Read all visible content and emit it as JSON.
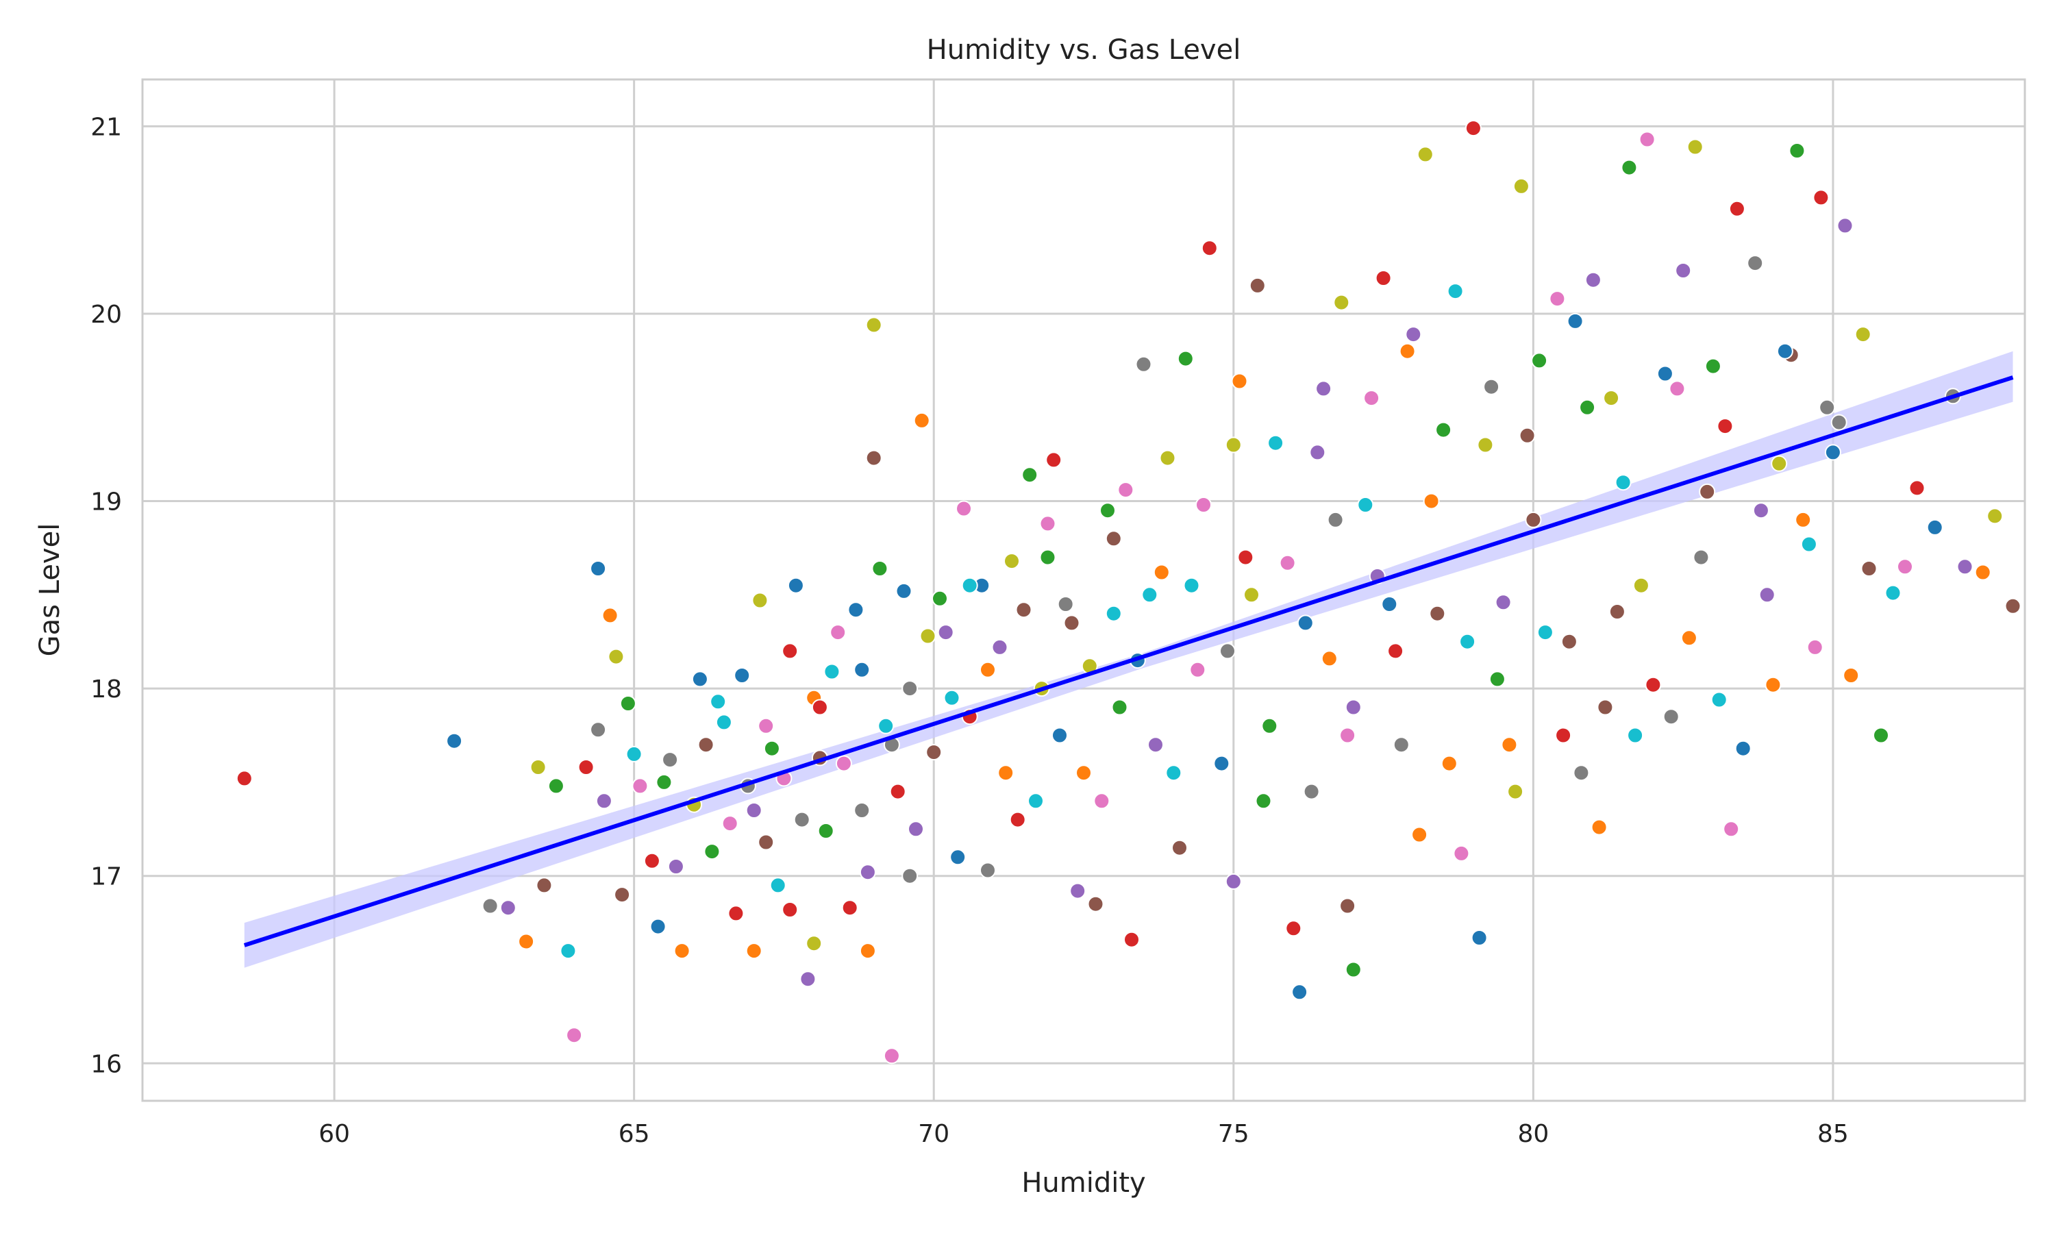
{
  "chart_data": {
    "type": "scatter",
    "title": "Humidity vs. Gas Level",
    "xlabel": "Humidity",
    "ylabel": "Gas Level",
    "xlim": [
      56.8,
      88.2
    ],
    "ylim": [
      15.8,
      21.25
    ],
    "x_ticks": [
      "60",
      "65",
      "70",
      "75",
      "80",
      "85"
    ],
    "y_ticks": [
      "16",
      "17",
      "18",
      "19",
      "20",
      "21"
    ],
    "grid": true,
    "legend": "none",
    "palette": [
      "#1f77b4",
      "#ff7f0e",
      "#2ca02c",
      "#d62728",
      "#9467bd",
      "#8c564b",
      "#e377c2",
      "#7f7f7f",
      "#bcbd22",
      "#17becf"
    ],
    "regression": {
      "color": "#0000ff",
      "band_color": "#c8c8ff",
      "points": [
        [
          58.5,
          16.63
        ],
        [
          88.0,
          19.66
        ]
      ],
      "band_lower": [
        [
          58.5,
          16.51
        ],
        [
          73.5,
          18.11
        ],
        [
          88.0,
          19.53
        ]
      ],
      "band_upper": [
        [
          58.5,
          16.75
        ],
        [
          73.5,
          18.19
        ],
        [
          88.0,
          19.8
        ]
      ]
    },
    "points": [
      [
        58.5,
        17.52
      ],
      [
        62.0,
        17.72
      ],
      [
        62.6,
        16.84
      ],
      [
        62.9,
        16.83
      ],
      [
        63.2,
        16.65
      ],
      [
        63.4,
        17.58
      ],
      [
        63.5,
        16.95
      ],
      [
        63.7,
        17.48
      ],
      [
        63.9,
        16.6
      ],
      [
        64.0,
        16.15
      ],
      [
        64.2,
        17.58
      ],
      [
        64.4,
        18.64
      ],
      [
        64.4,
        17.78
      ],
      [
        64.5,
        17.4
      ],
      [
        64.6,
        18.39
      ],
      [
        64.7,
        18.17
      ],
      [
        64.8,
        16.9
      ],
      [
        64.9,
        17.92
      ],
      [
        65.0,
        17.65
      ],
      [
        65.1,
        17.48
      ],
      [
        65.3,
        17.08
      ],
      [
        65.4,
        16.73
      ],
      [
        65.6,
        17.62
      ],
      [
        65.7,
        17.05
      ],
      [
        65.8,
        16.6
      ],
      [
        66.0,
        17.38
      ],
      [
        66.2,
        17.7
      ],
      [
        66.3,
        17.13
      ],
      [
        66.5,
        17.82
      ],
      [
        66.6,
        17.28
      ],
      [
        66.7,
        16.8
      ],
      [
        66.8,
        18.07
      ],
      [
        66.9,
        17.48
      ],
      [
        67.0,
        17.35
      ],
      [
        67.0,
        16.6
      ],
      [
        67.1,
        18.47
      ],
      [
        67.2,
        17.18
      ],
      [
        67.3,
        17.68
      ],
      [
        67.4,
        16.95
      ],
      [
        67.5,
        17.52
      ],
      [
        67.6,
        16.82
      ],
      [
        67.7,
        18.55
      ],
      [
        67.8,
        17.3
      ],
      [
        67.9,
        16.45
      ],
      [
        68.0,
        17.95
      ],
      [
        68.0,
        16.64
      ],
      [
        68.1,
        17.63
      ],
      [
        68.2,
        17.24
      ],
      [
        68.3,
        18.09
      ],
      [
        68.5,
        17.6
      ],
      [
        68.6,
        16.83
      ],
      [
        68.7,
        18.42
      ],
      [
        68.8,
        17.35
      ],
      [
        68.9,
        17.02
      ],
      [
        68.9,
        16.6
      ],
      [
        69.0,
        19.94
      ],
      [
        69.0,
        19.23
      ],
      [
        69.1,
        18.64
      ],
      [
        69.2,
        17.8
      ],
      [
        69.3,
        16.04
      ],
      [
        69.4,
        17.45
      ],
      [
        69.5,
        18.52
      ],
      [
        69.6,
        18.0
      ],
      [
        69.7,
        17.25
      ],
      [
        69.8,
        19.43
      ],
      [
        69.9,
        18.28
      ],
      [
        70.0,
        17.66
      ],
      [
        70.1,
        18.48
      ],
      [
        70.3,
        17.95
      ],
      [
        70.5,
        18.96
      ],
      [
        70.6,
        17.85
      ],
      [
        70.8,
        18.55
      ],
      [
        70.9,
        17.03
      ],
      [
        71.1,
        18.22
      ],
      [
        71.2,
        17.55
      ],
      [
        71.3,
        18.68
      ],
      [
        71.5,
        18.42
      ],
      [
        71.6,
        19.14
      ],
      [
        71.7,
        17.4
      ],
      [
        71.9,
        18.88
      ],
      [
        72.0,
        19.22
      ],
      [
        72.1,
        17.75
      ],
      [
        72.2,
        18.45
      ],
      [
        72.4,
        16.92
      ],
      [
        72.5,
        17.55
      ],
      [
        72.6,
        18.12
      ],
      [
        72.7,
        16.85
      ],
      [
        72.9,
        18.95
      ],
      [
        73.0,
        18.4
      ],
      [
        73.2,
        19.06
      ],
      [
        73.3,
        16.66
      ],
      [
        73.4,
        18.15
      ],
      [
        73.5,
        19.73
      ],
      [
        73.7,
        17.7
      ],
      [
        73.8,
        18.62
      ],
      [
        73.9,
        19.23
      ],
      [
        74.1,
        17.15
      ],
      [
        74.2,
        19.76
      ],
      [
        74.3,
        18.55
      ],
      [
        74.5,
        18.98
      ],
      [
        74.6,
        20.35
      ],
      [
        74.8,
        17.6
      ],
      [
        74.9,
        18.2
      ],
      [
        75.0,
        16.97
      ],
      [
        75.1,
        19.64
      ],
      [
        75.3,
        18.5
      ],
      [
        75.4,
        20.15
      ],
      [
        75.5,
        17.4
      ],
      [
        75.7,
        19.31
      ],
      [
        75.9,
        18.67
      ],
      [
        76.0,
        16.72
      ],
      [
        76.1,
        16.38
      ],
      [
        76.3,
        17.45
      ],
      [
        76.4,
        19.26
      ],
      [
        76.6,
        18.16
      ],
      [
        76.8,
        20.06
      ],
      [
        76.9,
        16.84
      ],
      [
        77.0,
        16.5
      ],
      [
        77.2,
        18.98
      ],
      [
        77.3,
        19.55
      ],
      [
        77.5,
        20.19
      ],
      [
        77.6,
        18.45
      ],
      [
        77.8,
        17.7
      ],
      [
        78.0,
        19.89
      ],
      [
        78.1,
        17.22
      ],
      [
        78.2,
        20.85
      ],
      [
        78.4,
        18.4
      ],
      [
        78.5,
        19.38
      ],
      [
        78.7,
        20.12
      ],
      [
        78.8,
        17.12
      ],
      [
        79.0,
        20.99
      ],
      [
        79.1,
        16.67
      ],
      [
        79.3,
        19.61
      ],
      [
        79.5,
        18.46
      ],
      [
        79.6,
        17.7
      ],
      [
        79.8,
        20.68
      ],
      [
        79.9,
        19.35
      ],
      [
        80.1,
        19.75
      ],
      [
        80.2,
        18.3
      ],
      [
        80.4,
        20.08
      ],
      [
        80.5,
        17.75
      ],
      [
        80.7,
        19.96
      ],
      [
        80.8,
        17.55
      ],
      [
        81.0,
        20.18
      ],
      [
        81.1,
        17.26
      ],
      [
        81.3,
        19.55
      ],
      [
        81.4,
        18.41
      ],
      [
        81.6,
        20.78
      ],
      [
        81.7,
        17.75
      ],
      [
        81.9,
        20.93
      ],
      [
        82.0,
        18.02
      ],
      [
        82.2,
        19.68
      ],
      [
        82.3,
        17.85
      ],
      [
        82.5,
        20.23
      ],
      [
        82.6,
        18.27
      ],
      [
        82.7,
        20.89
      ],
      [
        82.9,
        19.05
      ],
      [
        83.0,
        19.72
      ],
      [
        83.1,
        17.94
      ],
      [
        83.3,
        17.25
      ],
      [
        83.4,
        20.56
      ],
      [
        83.5,
        17.68
      ],
      [
        83.7,
        20.27
      ],
      [
        83.8,
        18.95
      ],
      [
        84.0,
        18.02
      ],
      [
        84.1,
        19.2
      ],
      [
        84.3,
        19.78
      ],
      [
        84.4,
        20.87
      ],
      [
        84.6,
        18.77
      ],
      [
        84.7,
        18.22
      ],
      [
        84.8,
        20.62
      ],
      [
        85.0,
        19.26
      ],
      [
        85.1,
        19.42
      ],
      [
        85.2,
        20.47
      ],
      [
        85.3,
        18.07
      ],
      [
        85.5,
        19.89
      ],
      [
        85.6,
        18.64
      ],
      [
        85.8,
        17.75
      ],
      [
        86.0,
        18.51
      ],
      [
        86.2,
        18.65
      ],
      [
        86.4,
        19.07
      ],
      [
        86.7,
        18.86
      ],
      [
        87.0,
        19.56
      ],
      [
        87.2,
        18.65
      ],
      [
        87.5,
        18.62
      ],
      [
        87.7,
        18.92
      ],
      [
        88.0,
        18.44
      ],
      [
        65.5,
        17.5
      ],
      [
        66.4,
        17.93
      ],
      [
        67.2,
        17.8
      ],
      [
        68.1,
        17.9
      ],
      [
        68.8,
        18.1
      ],
      [
        69.3,
        17.7
      ],
      [
        70.2,
        18.3
      ],
      [
        70.9,
        18.1
      ],
      [
        71.8,
        18.0
      ],
      [
        72.3,
        18.35
      ],
      [
        73.1,
        17.9
      ],
      [
        73.6,
        18.5
      ],
      [
        74.4,
        18.1
      ],
      [
        75.2,
        18.7
      ],
      [
        76.2,
        18.35
      ],
      [
        76.7,
        18.9
      ],
      [
        77.4,
        18.6
      ],
      [
        78.3,
        19.0
      ],
      [
        79.2,
        19.3
      ],
      [
        80.0,
        18.9
      ],
      [
        80.9,
        19.5
      ],
      [
        81.5,
        19.1
      ],
      [
        82.4,
        19.6
      ],
      [
        83.2,
        19.4
      ],
      [
        84.2,
        19.8
      ],
      [
        84.9,
        19.5
      ],
      [
        77.0,
        17.9
      ],
      [
        78.6,
        17.6
      ],
      [
        79.7,
        17.45
      ],
      [
        81.2,
        17.9
      ],
      [
        75.6,
        17.8
      ],
      [
        74.0,
        17.55
      ],
      [
        72.8,
        17.4
      ],
      [
        71.4,
        17.3
      ],
      [
        70.4,
        17.1
      ],
      [
        69.6,
        17.0
      ],
      [
        76.5,
        19.6
      ],
      [
        77.9,
        19.8
      ],
      [
        75.0,
        19.3
      ],
      [
        73.0,
        18.8
      ],
      [
        71.9,
        18.7
      ],
      [
        70.6,
        18.55
      ],
      [
        68.4,
        18.3
      ],
      [
        67.6,
        18.2
      ],
      [
        66.1,
        18.05
      ],
      [
        82.8,
        18.7
      ],
      [
        83.9,
        18.5
      ],
      [
        84.5,
        18.9
      ],
      [
        81.8,
        18.55
      ],
      [
        80.6,
        18.25
      ],
      [
        79.4,
        18.05
      ],
      [
        78.9,
        18.25
      ],
      [
        76.9,
        17.75
      ],
      [
        77.7,
        18.2
      ]
    ]
  }
}
